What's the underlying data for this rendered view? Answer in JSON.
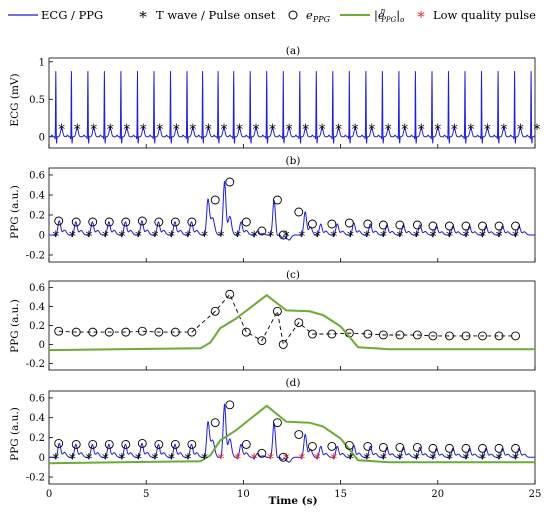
{
  "legend": {
    "items": [
      {
        "label": "ECG / PPG",
        "symbol": "line",
        "color": "#1f1fd6"
      },
      {
        "label": "T wave / Pulse onset",
        "symbol": "asterisk",
        "color": "#000000"
      },
      {
        "label": "e",
        "sub": "PPG",
        "symbol": "circle",
        "color": "#000000"
      },
      {
        "label": "|e",
        "sup": "n",
        "sub": "PPG",
        "tail": "|",
        "tailsub": "o",
        "symbol": "line",
        "color": "#6aac35"
      },
      {
        "label": "Low quality pulse",
        "symbol": "asterisk",
        "color": "#e8282a"
      }
    ]
  },
  "colors": {
    "signal": "#1f1fd6",
    "envelope": "#6aac35",
    "marker": "#000000",
    "low_quality": "#e8282a"
  },
  "xlabel": "Time (s)",
  "x_ticks": [
    "0",
    "5",
    "10",
    "15",
    "20",
    "25"
  ],
  "chart_data": [
    {
      "type": "line",
      "title": "(a)",
      "ylabel": "ECG (mV)",
      "xlim": [
        0,
        25
      ],
      "ylim": [
        -0.15,
        1.05
      ],
      "y_ticks": [
        "0",
        "0.5",
        "1"
      ],
      "beat_times": [
        0.35,
        1.15,
        2.0,
        2.85,
        3.7,
        4.55,
        5.4,
        6.25,
        7.1,
        7.9,
        8.7,
        9.5,
        10.35,
        11.2,
        12.05,
        12.9,
        13.75,
        14.6,
        15.45,
        16.3,
        17.15,
        18.0,
        18.85,
        19.7,
        20.55,
        21.4,
        22.25,
        23.1,
        23.95,
        24.8
      ],
      "r_peak": 0.88,
      "t_wave_value": 0.12,
      "series": [
        {
          "values_description": "periodic ECG"
        }
      ]
    },
    {
      "type": "line",
      "title": "(b)",
      "ylabel": "PPG (a.u.)",
      "xlim": [
        0,
        25
      ],
      "ylim": [
        -0.27,
        0.67
      ],
      "y_ticks": [
        "-0.2",
        "0",
        "0.2",
        "0.4",
        "0.6"
      ],
      "onset_times": [
        0.35,
        1.2,
        2.05,
        2.9,
        3.75,
        4.6,
        5.45,
        6.3,
        7.15,
        8.0,
        8.85,
        9.7,
        10.55,
        11.4,
        12.2,
        13.0,
        13.8,
        14.65,
        15.5,
        16.35,
        17.2,
        18.05,
        18.9,
        19.75,
        20.6,
        21.45,
        22.3,
        23.15,
        24.0
      ],
      "e_ppg_points": [
        [
          0.5,
          0.14
        ],
        [
          1.4,
          0.13
        ],
        [
          2.25,
          0.13
        ],
        [
          3.1,
          0.13
        ],
        [
          3.95,
          0.13
        ],
        [
          4.8,
          0.14
        ],
        [
          5.65,
          0.13
        ],
        [
          6.5,
          0.13
        ],
        [
          7.35,
          0.13
        ],
        [
          8.55,
          0.35
        ],
        [
          9.3,
          0.53
        ],
        [
          10.15,
          0.13
        ],
        [
          10.95,
          0.04
        ],
        [
          11.75,
          0.35
        ],
        [
          12.05,
          0.0
        ],
        [
          12.85,
          0.23
        ],
        [
          13.55,
          0.11
        ],
        [
          14.55,
          0.11
        ],
        [
          15.45,
          0.12
        ],
        [
          16.4,
          0.11
        ],
        [
          17.2,
          0.1
        ],
        [
          18.05,
          0.1
        ],
        [
          18.95,
          0.1
        ],
        [
          19.75,
          0.09
        ],
        [
          20.6,
          0.09
        ],
        [
          21.45,
          0.09
        ],
        [
          22.3,
          0.09
        ],
        [
          23.15,
          0.09
        ],
        [
          24.0,
          0.09
        ]
      ]
    },
    {
      "type": "line",
      "title": "(c)",
      "ylabel": "PPG (a.u.)",
      "xlim": [
        0,
        25
      ],
      "ylim": [
        -0.27,
        0.67
      ],
      "y_ticks": [
        "-0.2",
        "0",
        "0.2",
        "0.4",
        "0.6"
      ],
      "envelope": [
        [
          0,
          -0.06
        ],
        [
          7.8,
          -0.04
        ],
        [
          8.3,
          0.02
        ],
        [
          8.8,
          0.17
        ],
        [
          9.6,
          0.27
        ],
        [
          11.2,
          0.52
        ],
        [
          12.2,
          0.36
        ],
        [
          13.4,
          0.35
        ],
        [
          14.1,
          0.31
        ],
        [
          15.0,
          0.19
        ],
        [
          15.9,
          -0.03
        ],
        [
          17.5,
          -0.05
        ],
        [
          25,
          -0.05
        ]
      ]
    },
    {
      "type": "line",
      "title": "(d)",
      "ylabel": "PPG (a.u.)",
      "xlim": [
        0,
        25
      ],
      "ylim": [
        -0.27,
        0.67
      ],
      "y_ticks": [
        "-0.2",
        "0",
        "0.2",
        "0.4",
        "0.6"
      ],
      "low_quality_onsets": [
        8.95,
        9.75,
        10.6,
        11.35,
        12.2,
        13.0,
        13.8,
        14.6
      ]
    }
  ]
}
